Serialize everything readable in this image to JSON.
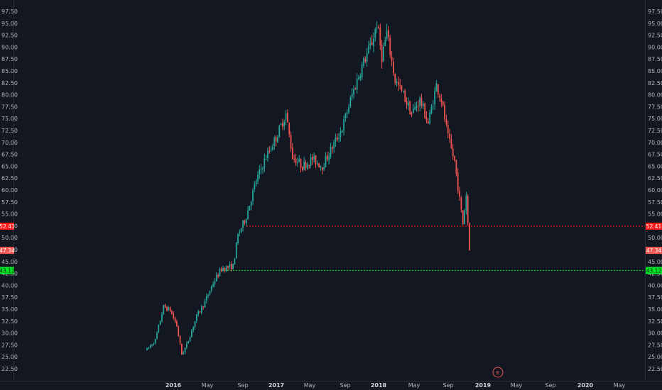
{
  "chart_data": {
    "type": "candlestick",
    "y_axis": {
      "ticks": [
        "97.50",
        "95.00",
        "92.50",
        "90.00",
        "87.50",
        "85.00",
        "82.50",
        "80.00",
        "77.50",
        "75.00",
        "72.50",
        "70.00",
        "67.50",
        "65.00",
        "62.50",
        "60.00",
        "57.50",
        "55.00",
        "52.50",
        "50.00",
        "47.50",
        "45.00",
        "42.50",
        "40.00",
        "37.50",
        "35.00",
        "32.50",
        "30.00",
        "27.50",
        "25.00",
        "22.50"
      ],
      "ylim": [
        21.5,
        98.8
      ],
      "sides": "both"
    },
    "x_axis": {
      "labels": [
        {
          "text": "2016",
          "bold": true
        },
        {
          "text": "May",
          "bold": false
        },
        {
          "text": "Sep",
          "bold": false
        },
        {
          "text": "2017",
          "bold": true
        },
        {
          "text": "May",
          "bold": false
        },
        {
          "text": "Sep",
          "bold": false
        },
        {
          "text": "2018",
          "bold": true
        },
        {
          "text": "May",
          "bold": false
        },
        {
          "text": "Sep",
          "bold": false
        },
        {
          "text": "2019",
          "bold": true
        },
        {
          "text": "May",
          "bold": false
        },
        {
          "text": "Sep",
          "bold": false
        },
        {
          "text": "2020",
          "bold": true
        },
        {
          "text": "May",
          "bold": false
        }
      ]
    },
    "colors": {
      "background": "#131722",
      "up": "#26a69a",
      "down": "#ef5350",
      "axis_text": "#b2b5be",
      "resistance": "#ff1a1a",
      "support": "#00e626",
      "last_price": "#ef5350"
    },
    "price_tags": {
      "resistance": {
        "label": "52.41",
        "value": 52.41
      },
      "last": {
        "label": "47.34",
        "value": 47.34
      },
      "support": {
        "label": "43.12",
        "value": 43.12
      }
    },
    "earnings_marker": {
      "label": "E"
    },
    "ohlc_anchors": [
      {
        "t": 0,
        "p": 26.5
      },
      {
        "t": 5,
        "p": 28.5
      },
      {
        "t": 10,
        "p": 35.5
      },
      {
        "t": 14,
        "p": 34.8
      },
      {
        "t": 18,
        "p": 31.5
      },
      {
        "t": 21,
        "p": 25.5
      },
      {
        "t": 24,
        "p": 27.5
      },
      {
        "t": 30,
        "p": 33.5
      },
      {
        "t": 35,
        "p": 36.5
      },
      {
        "t": 40,
        "p": 40.5
      },
      {
        "t": 45,
        "p": 43.5
      },
      {
        "t": 52,
        "p": 44
      },
      {
        "t": 55,
        "p": 50.5
      },
      {
        "t": 60,
        "p": 54.5
      },
      {
        "t": 66,
        "p": 62
      },
      {
        "t": 72,
        "p": 67
      },
      {
        "t": 78,
        "p": 71
      },
      {
        "t": 84,
        "p": 76
      },
      {
        "t": 88,
        "p": 67
      },
      {
        "t": 94,
        "p": 65
      },
      {
        "t": 100,
        "p": 66.5
      },
      {
        "t": 106,
        "p": 65
      },
      {
        "t": 112,
        "p": 69
      },
      {
        "t": 118,
        "p": 73
      },
      {
        "t": 124,
        "p": 80
      },
      {
        "t": 130,
        "p": 86
      },
      {
        "t": 136,
        "p": 91
      },
      {
        "t": 139,
        "p": 95
      },
      {
        "t": 142,
        "p": 88
      },
      {
        "t": 145,
        "p": 93
      },
      {
        "t": 150,
        "p": 83
      },
      {
        "t": 155,
        "p": 80
      },
      {
        "t": 160,
        "p": 76
      },
      {
        "t": 165,
        "p": 79
      },
      {
        "t": 170,
        "p": 74
      },
      {
        "t": 175,
        "p": 82
      },
      {
        "t": 178,
        "p": 79
      },
      {
        "t": 182,
        "p": 71
      },
      {
        "t": 186,
        "p": 66
      },
      {
        "t": 189,
        "p": 58
      },
      {
        "t": 191,
        "p": 53
      },
      {
        "t": 193,
        "p": 59
      },
      {
        "t": 195,
        "p": 47.34
      }
    ]
  }
}
